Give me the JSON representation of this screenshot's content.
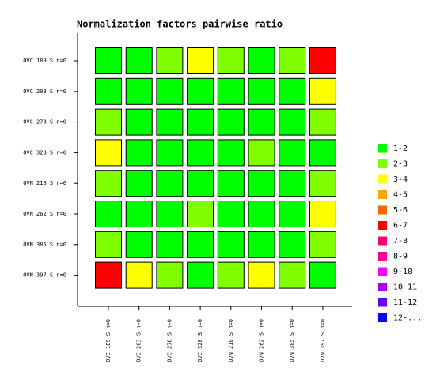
{
  "chart_data": {
    "type": "heatmap",
    "title": "Normalization factors pairwise ratio",
    "rows": [
      "OVC 189 S n=0",
      "OVC 203 S n=0",
      "OVC 278 S n=0",
      "OVC 328 S n=0",
      "OVN 218 S n=0",
      "OVN 262 S n=0",
      "OVN 385 S n=0",
      "OVN 397 S n=0"
    ],
    "columns": [
      "OVC 189 S n=0",
      "OVC 203 S n=0",
      "OVC 278 S n=0",
      "OVC 328 S n=0",
      "OVN 218 S n=0",
      "OVN 262 S n=0",
      "OVN 385 S n=0",
      "OVN 397 S n=0"
    ],
    "cells": [
      [
        "1-2",
        "1-2",
        "2-3",
        "3-4",
        "2-3",
        "1-2",
        "2-3",
        "6-7"
      ],
      [
        "1-2",
        "1-2",
        "1-2",
        "1-2",
        "1-2",
        "1-2",
        "1-2",
        "3-4"
      ],
      [
        "2-3",
        "1-2",
        "1-2",
        "1-2",
        "1-2",
        "1-2",
        "1-2",
        "2-3"
      ],
      [
        "3-4",
        "1-2",
        "1-2",
        "1-2",
        "1-2",
        "2-3",
        "1-2",
        "1-2"
      ],
      [
        "2-3",
        "1-2",
        "1-2",
        "1-2",
        "1-2",
        "1-2",
        "1-2",
        "2-3"
      ],
      [
        "1-2",
        "1-2",
        "1-2",
        "2-3",
        "1-2",
        "1-2",
        "1-2",
        "3-4"
      ],
      [
        "2-3",
        "1-2",
        "1-2",
        "1-2",
        "1-2",
        "1-2",
        "1-2",
        "2-3"
      ],
      [
        "6-7",
        "3-4",
        "2-3",
        "1-2",
        "2-3",
        "3-4",
        "2-3",
        "1-2"
      ]
    ],
    "legend": [
      {
        "label": "1-2",
        "color": "#00ff00"
      },
      {
        "label": "2-3",
        "color": "#80ff00"
      },
      {
        "label": "3-4",
        "color": "#ffff00"
      },
      {
        "label": "4-5",
        "color": "#ffa500"
      },
      {
        "label": "5-6",
        "color": "#ff6600"
      },
      {
        "label": "6-7",
        "color": "#ff0000"
      },
      {
        "label": "7-8",
        "color": "#ff0066"
      },
      {
        "label": "8-9",
        "color": "#ff0099"
      },
      {
        "label": "9-10",
        "color": "#ff00ff"
      },
      {
        "label": "10-11",
        "color": "#aa00ff"
      },
      {
        "label": "11-12",
        "color": "#6600ff"
      },
      {
        "label": "12-...",
        "color": "#0000ff"
      }
    ]
  }
}
